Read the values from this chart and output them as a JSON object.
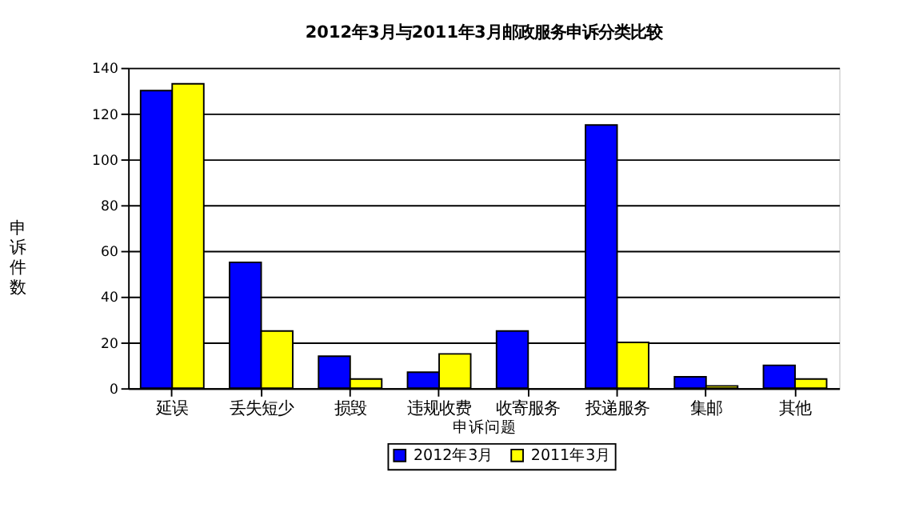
{
  "chart_data": {
    "type": "bar",
    "title": "2012年3月与2011年3月邮政服务申诉分类比较",
    "categories": [
      "延误",
      "丢失短少",
      "损毁",
      "违规收费",
      "收寄服务",
      "投递服务",
      "集邮",
      "其他"
    ],
    "series": [
      {
        "name": "2012年3月",
        "color": "#0000ff",
        "values": [
          130,
          55,
          14,
          7,
          25,
          115,
          5,
          10
        ]
      },
      {
        "name": "2011年3月",
        "color": "#ffff00",
        "values": [
          133,
          25,
          4,
          15,
          null,
          20,
          1,
          4
        ]
      }
    ],
    "xlabel": "申诉问题",
    "ylabel": "申诉件数",
    "ylim": [
      0,
      140
    ],
    "yticks": [
      0,
      20,
      40,
      60,
      80,
      100,
      120,
      140
    ],
    "grid": "y",
    "legend": "bottom"
  }
}
